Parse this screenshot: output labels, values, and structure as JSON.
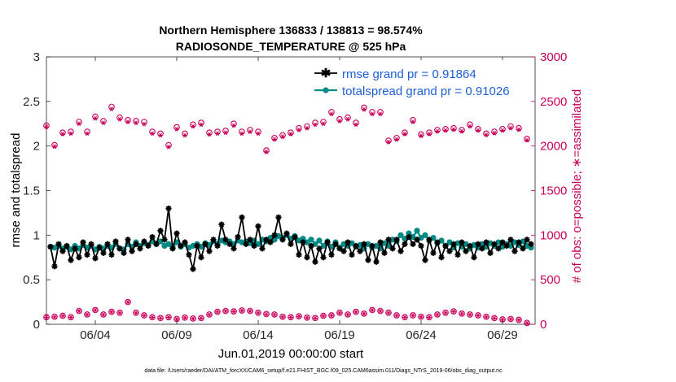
{
  "chart_data": {
    "type": "line",
    "title": [
      "Northern Hemisphere 136833 / 138813 = 98.574%",
      "RADIOSONDE_TEMPERATURE @ 525 hPa"
    ],
    "xlabel": "Jun.01,2019 00:00:00 start",
    "ylabel": "rmse and totalspread",
    "ylabel_right": "# of obs: o=possible; ∗=assimilated",
    "footnote": "data file: /Users/raeder/DAI/ATM_forcXX/CAM6_setup/f.e21.FHIST_BGC.f09_025.CAM6assim.011/Diags_NTrS_2019-06/obs_diag_output.nc",
    "x_range": [
      1.0,
      31.0
    ],
    "x_ticks": [
      4,
      9,
      14,
      19,
      24,
      29
    ],
    "x_tick_labels": [
      "06/04",
      "06/09",
      "06/14",
      "06/19",
      "06/24",
      "06/29"
    ],
    "ylim": [
      0,
      3
    ],
    "y_ticks": [
      0,
      0.5,
      1,
      1.5,
      2,
      2.5,
      3
    ],
    "y_tick_labels": [
      "0",
      "0.5",
      "1",
      "1.5",
      "2",
      "2.5",
      "3"
    ],
    "ylim_right": [
      0,
      3000
    ],
    "y_ticks_right": [
      0,
      500,
      1000,
      1500,
      2000,
      2500,
      3000
    ],
    "y_tick_labels_right": [
      "0",
      "500",
      "1000",
      "1500",
      "2000",
      "2500",
      "3000"
    ],
    "legend": {
      "location": "top-right",
      "entries": [
        "rmse grand pr = 0.91864",
        "totalspread grand pr = 0.91026"
      ]
    },
    "series_x": [
      1.25,
      1.5,
      1.75,
      2.0,
      2.25,
      2.5,
      2.75,
      3.0,
      3.25,
      3.5,
      3.75,
      4.0,
      4.25,
      4.5,
      4.75,
      5.0,
      5.25,
      5.5,
      5.75,
      6.0,
      6.25,
      6.5,
      6.75,
      7.0,
      7.25,
      7.5,
      7.75,
      8.0,
      8.25,
      8.5,
      8.75,
      9.0,
      9.25,
      9.5,
      9.75,
      10.0,
      10.25,
      10.5,
      10.75,
      11.0,
      11.25,
      11.5,
      11.75,
      12.0,
      12.25,
      12.5,
      12.75,
      13.0,
      13.25,
      13.5,
      13.75,
      14.0,
      14.25,
      14.5,
      14.75,
      15.0,
      15.25,
      15.5,
      15.75,
      16.0,
      16.25,
      16.5,
      16.75,
      17.0,
      17.25,
      17.5,
      17.75,
      18.0,
      18.25,
      18.5,
      18.75,
      19.0,
      19.25,
      19.5,
      19.75,
      20.0,
      20.25,
      20.5,
      20.75,
      21.0,
      21.25,
      21.5,
      21.75,
      22.0,
      22.25,
      22.5,
      22.75,
      23.0,
      23.25,
      23.5,
      23.75,
      24.0,
      24.25,
      24.5,
      24.75,
      25.0,
      25.25,
      25.5,
      25.75,
      26.0,
      26.25,
      26.5,
      26.75,
      27.0,
      27.25,
      27.5,
      27.75,
      28.0,
      28.25,
      28.5,
      28.75,
      29.0,
      29.25,
      29.5,
      29.75,
      30.0,
      30.25,
      30.5,
      30.75
    ],
    "series": [
      {
        "name": "rmse",
        "color": "#000000",
        "marker": "star",
        "values": [
          0.87,
          0.65,
          0.9,
          0.82,
          0.88,
          0.72,
          0.85,
          0.75,
          0.92,
          0.78,
          0.9,
          0.74,
          0.86,
          0.8,
          0.9,
          0.78,
          0.93,
          0.85,
          0.8,
          0.95,
          0.82,
          0.9,
          0.85,
          0.93,
          0.88,
          0.98,
          0.9,
          1.05,
          0.95,
          1.3,
          0.85,
          1.02,
          0.88,
          0.92,
          0.78,
          0.62,
          0.88,
          0.75,
          0.9,
          0.82,
          0.95,
          0.88,
          1.12,
          0.95,
          0.9,
          0.85,
          0.98,
          1.2,
          0.9,
          0.95,
          0.88,
          1.1,
          0.85,
          0.95,
          0.92,
          1.0,
          1.2,
          0.95,
          1.02,
          0.9,
          0.98,
          0.78,
          0.92,
          0.75,
          0.88,
          0.7,
          0.85,
          0.75,
          0.92,
          0.78,
          0.9,
          0.85,
          0.82,
          0.92,
          0.78,
          0.88,
          0.82,
          0.9,
          0.72,
          0.88,
          0.7,
          0.92,
          0.8,
          0.95,
          0.85,
          0.95,
          0.82,
          0.9,
          0.98,
          0.9,
          0.95,
          0.88,
          0.72,
          0.95,
          0.8,
          0.92,
          0.75,
          0.88,
          0.82,
          0.9,
          0.78,
          0.92,
          0.82,
          0.88,
          0.75,
          0.9,
          0.85,
          0.92,
          0.8,
          0.9,
          0.85,
          0.92,
          0.88,
          0.95,
          0.82,
          0.92,
          0.85,
          0.95,
          0.9
        ]
      },
      {
        "name": "totalspread",
        "color": "#008a86",
        "marker": "circle",
        "values": [
          0.87,
          0.86,
          0.88,
          0.85,
          0.87,
          0.84,
          0.88,
          0.85,
          0.89,
          0.86,
          0.88,
          0.84,
          0.87,
          0.85,
          0.88,
          0.86,
          0.9,
          0.85,
          0.84,
          0.9,
          0.87,
          0.92,
          0.88,
          0.91,
          0.89,
          0.93,
          0.9,
          0.93,
          0.88,
          0.9,
          0.86,
          0.92,
          0.87,
          0.9,
          0.86,
          0.88,
          0.9,
          0.87,
          0.91,
          0.89,
          0.93,
          0.9,
          0.94,
          0.92,
          0.93,
          0.9,
          0.94,
          0.92,
          0.93,
          0.91,
          0.94,
          0.9,
          0.95,
          0.93,
          0.97,
          0.95,
          0.99,
          0.97,
          1.0,
          0.96,
          0.99,
          0.94,
          0.96,
          0.92,
          0.95,
          0.9,
          0.94,
          0.88,
          0.93,
          0.87,
          0.92,
          0.86,
          0.9,
          0.88,
          0.91,
          0.87,
          0.89,
          0.85,
          0.9,
          0.86,
          0.88,
          0.85,
          0.91,
          0.88,
          0.95,
          0.93,
          1.0,
          0.96,
          1.02,
          0.98,
          1.05,
          0.97,
          1.0,
          0.94,
          0.97,
          0.91,
          0.94,
          0.88,
          0.92,
          0.86,
          0.91,
          0.87,
          0.9,
          0.85,
          0.89,
          0.86,
          0.9,
          0.87,
          0.91,
          0.88,
          0.92,
          0.87,
          0.9,
          0.88,
          0.92,
          0.89,
          0.93,
          0.88,
          0.86
        ]
      }
    ],
    "obs_x": [
      1.0,
      1.5,
      2.0,
      2.5,
      3.0,
      3.5,
      4.0,
      4.5,
      5.0,
      5.5,
      6.0,
      6.5,
      7.0,
      7.5,
      8.0,
      8.5,
      9.0,
      9.5,
      10.0,
      10.5,
      11.0,
      11.5,
      12.0,
      12.5,
      13.0,
      13.5,
      14.0,
      14.5,
      15.0,
      15.5,
      16.0,
      16.5,
      17.0,
      17.5,
      18.0,
      18.5,
      19.0,
      19.5,
      20.0,
      20.5,
      21.0,
      21.5,
      22.0,
      22.5,
      23.0,
      23.5,
      24.0,
      24.5,
      25.0,
      25.5,
      26.0,
      26.5,
      27.0,
      27.5,
      28.0,
      28.5,
      29.0,
      29.5,
      30.0,
      30.5
    ],
    "obs_possible_upper": [
      2230,
      2010,
      2150,
      2160,
      2270,
      2160,
      2330,
      2280,
      2440,
      2320,
      2290,
      2280,
      2270,
      2160,
      2140,
      2010,
      2210,
      2140,
      2240,
      2260,
      2150,
      2160,
      2170,
      2250,
      2160,
      2180,
      2160,
      1950,
      2090,
      2120,
      2150,
      2200,
      2220,
      2260,
      2270,
      2380,
      2300,
      2320,
      2260,
      2430,
      2380,
      2380,
      2060,
      2090,
      2150,
      2290,
      2130,
      2150,
      2180,
      2190,
      2200,
      2180,
      2240,
      2190,
      2140,
      2160,
      2190,
      2220,
      2200,
      2080
    ],
    "obs_assim_upper": [
      2215,
      1995,
      2135,
      2140,
      2250,
      2140,
      2310,
      2260,
      2415,
      2300,
      2270,
      2260,
      2245,
      2140,
      2120,
      1990,
      2190,
      2120,
      2220,
      2240,
      2130,
      2140,
      2150,
      2230,
      2140,
      2160,
      2140,
      1935,
      2075,
      2105,
      2135,
      2180,
      2200,
      2240,
      2250,
      2360,
      2280,
      2300,
      2240,
      2410,
      2360,
      2360,
      2045,
      2075,
      2135,
      2270,
      2115,
      2135,
      2165,
      2175,
      2185,
      2165,
      2220,
      2175,
      2125,
      2145,
      2175,
      2200,
      2185,
      2065
    ],
    "obs_possible_lower": [
      80,
      85,
      95,
      80,
      150,
      110,
      160,
      110,
      140,
      130,
      250,
      130,
      100,
      80,
      70,
      80,
      60,
      75,
      65,
      70,
      110,
      140,
      150,
      145,
      155,
      150,
      130,
      115,
      110,
      85,
      80,
      90,
      75,
      70,
      95,
      100,
      130,
      110,
      140,
      120,
      160,
      150,
      130,
      100,
      80,
      100,
      85,
      80,
      110,
      130,
      145,
      120,
      110,
      100,
      85,
      70,
      55,
      60,
      50,
      15
    ],
    "obs_assim_lower": [
      78,
      83,
      93,
      78,
      148,
      108,
      158,
      108,
      138,
      128,
      248,
      128,
      98,
      78,
      68,
      78,
      58,
      73,
      63,
      68,
      108,
      138,
      148,
      143,
      153,
      148,
      128,
      113,
      108,
      83,
      78,
      88,
      73,
      68,
      93,
      98,
      128,
      108,
      138,
      118,
      158,
      148,
      128,
      98,
      78,
      98,
      83,
      78,
      108,
      128,
      143,
      118,
      108,
      98,
      83,
      68,
      53,
      58,
      48,
      13
    ]
  }
}
